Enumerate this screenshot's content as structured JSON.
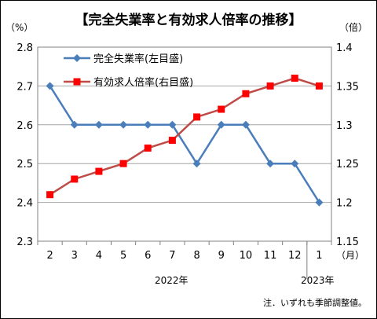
{
  "chart_data": {
    "type": "line",
    "title": "【完全失業率と有効求人倍率の推移】",
    "left_unit": "（%）",
    "right_unit": "（倍）",
    "x_unit": "（月）",
    "categories": [
      "2",
      "3",
      "4",
      "5",
      "6",
      "7",
      "8",
      "9",
      "10",
      "11",
      "12",
      "1"
    ],
    "year_labels": [
      "2022年",
      "2023年"
    ],
    "ylim_left": [
      2.3,
      2.8
    ],
    "yticks_left": [
      "2.3",
      "2.4",
      "2.5",
      "2.6",
      "2.7",
      "2.8"
    ],
    "ylim_right": [
      1.15,
      1.4
    ],
    "yticks_right": [
      "1.15",
      "1.2",
      "1.25",
      "1.3",
      "1.35",
      "1.4"
    ],
    "series": [
      {
        "name": "完全失業率(左目盛)",
        "axis": "left",
        "marker": "diamond",
        "color": "#4a7ebb",
        "values": [
          2.7,
          2.6,
          2.6,
          2.6,
          2.6,
          2.6,
          2.5,
          2.6,
          2.6,
          2.5,
          2.5,
          2.4
        ]
      },
      {
        "name": "有効求人倍率(右目盛)",
        "axis": "right",
        "marker": "square",
        "color": "#be4b48",
        "marker_color": "#ff0000",
        "values": [
          1.21,
          1.23,
          1.24,
          1.25,
          1.27,
          1.28,
          1.31,
          1.32,
          1.34,
          1.35,
          1.36,
          1.35
        ]
      }
    ],
    "grid": true,
    "legend": "top-left",
    "footnote": "注．いずれも季節調整値。"
  }
}
